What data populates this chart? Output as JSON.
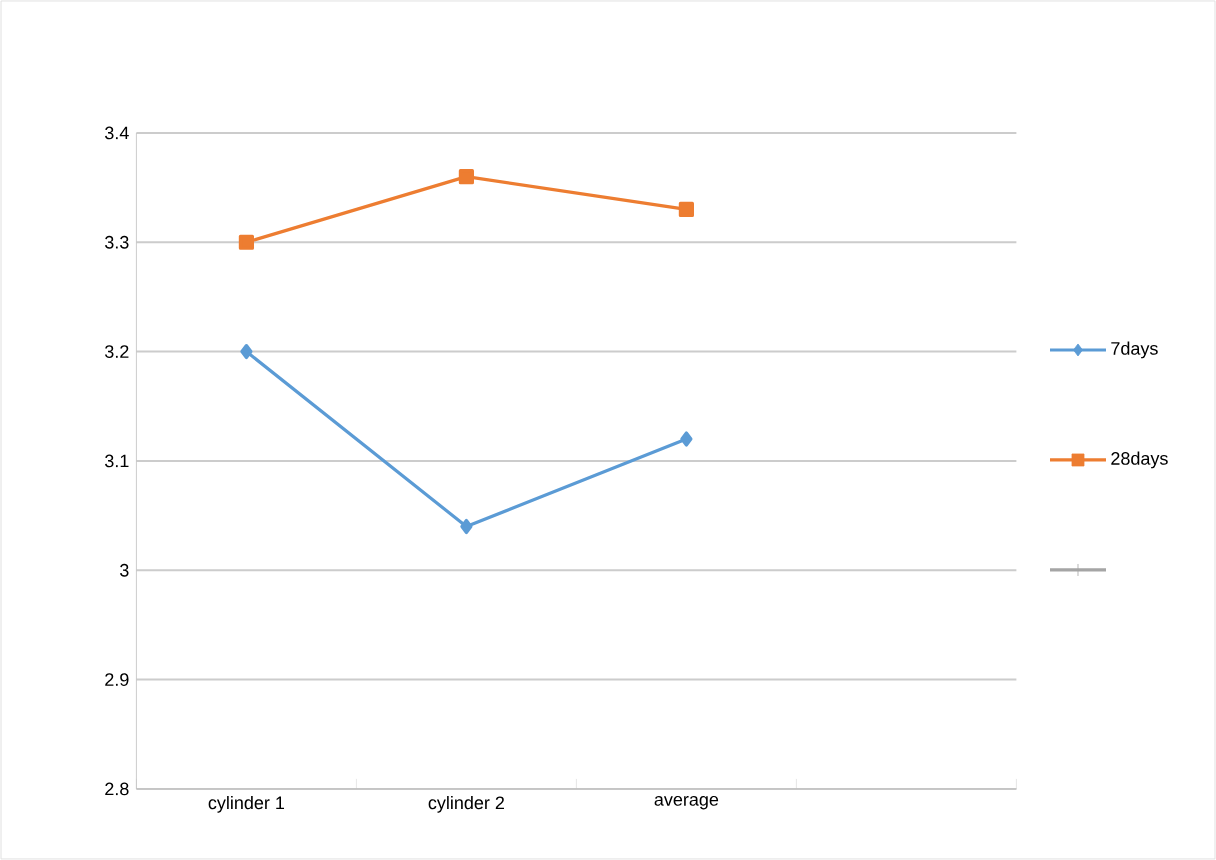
{
  "chart_data": {
    "type": "line",
    "categories": [
      "cylinder 1",
      "cylinder 2",
      "average",
      null
    ],
    "series": [
      {
        "name": "7days",
        "color": "#5b9bd5",
        "marker": "diamond",
        "values": [
          3.2,
          3.04,
          3.12,
          null
        ]
      },
      {
        "name": "28days",
        "color": "#ed7d31",
        "marker": "square",
        "values": [
          3.3,
          3.36,
          3.33,
          null
        ]
      },
      {
        "color": "#a5a5a5",
        "marker": "cross",
        "values": [
          null,
          null,
          null,
          null
        ]
      }
    ],
    "ylim": [
      2.8,
      3.4
    ],
    "yticks": [
      2.8,
      2.9,
      3,
      3.1,
      3.2,
      3.3,
      3.4
    ],
    "grid": "y",
    "legend": "right"
  }
}
